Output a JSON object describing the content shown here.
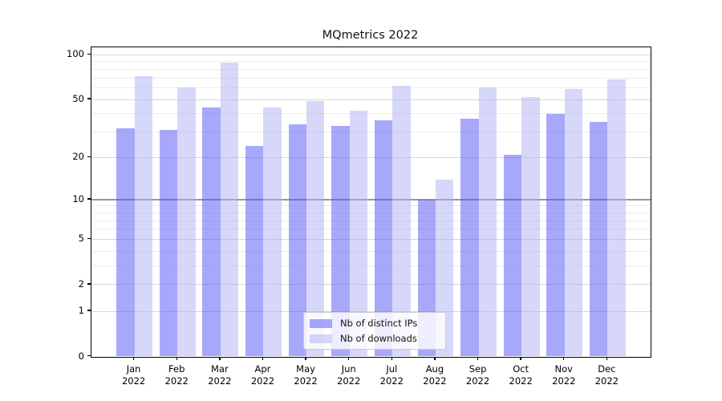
{
  "figure": {
    "background": "#ffffff",
    "title": "MQmetrics 2022"
  },
  "chart_data": {
    "type": "bar",
    "title": "MQmetrics 2022",
    "xlabel": "",
    "ylabel": "",
    "categories": [
      "Jan",
      "Feb",
      "Mar",
      "Apr",
      "May",
      "Jun",
      "Jul",
      "Aug",
      "Sep",
      "Oct",
      "Nov",
      "Dec"
    ],
    "x_year_label": "2022",
    "series": [
      {
        "name": "Nb of distinct IPs",
        "color": "rgba(82,82,245,0.5)",
        "values": [
          32,
          31,
          44,
          24,
          34,
          33,
          36,
          10,
          37,
          21,
          40,
          35
        ]
      },
      {
        "name": "Nb of downloads",
        "color": "rgba(175,175,244,0.5)",
        "values": [
          72,
          60,
          89,
          44,
          49,
          42,
          62,
          14,
          60,
          52,
          59,
          68
        ]
      }
    ],
    "yscale": "pseudo-log (log1p)",
    "ylim": [
      0,
      112.3
    ],
    "yticks": [
      0,
      1,
      2,
      5,
      10,
      20,
      50,
      100
    ],
    "yticks_minor": [
      3,
      4,
      6,
      7,
      8,
      9,
      30,
      40,
      60,
      70,
      80,
      90
    ],
    "reference_line_y": 10,
    "grid": true,
    "legend_position": "lower center"
  },
  "colors": {
    "grid_major": "#d7d7d7",
    "grid_minor": "#ececec",
    "reference_line": "#999999",
    "spine": "#000000",
    "text": "#000000"
  }
}
